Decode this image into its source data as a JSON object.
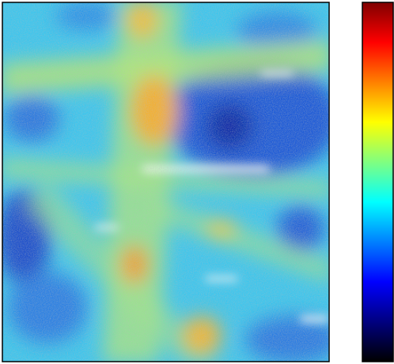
{
  "chart_data": {
    "type": "heatmap",
    "colorbar": {
      "colors": [
        "#800000",
        "#ff0000",
        "#ff8000",
        "#ffff00",
        "#80ff80",
        "#00ffff",
        "#0080ff",
        "#0000ff",
        "#000080",
        "#000000"
      ]
    }
  }
}
